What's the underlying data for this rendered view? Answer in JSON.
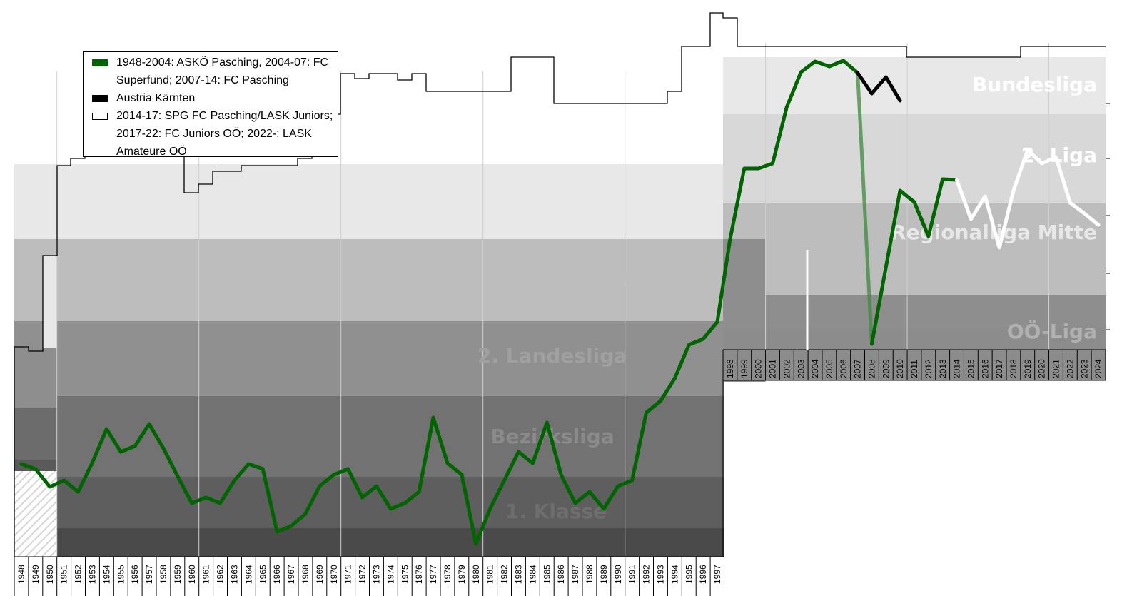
{
  "chart_data": {
    "type": "line",
    "title": "",
    "xlabel": "",
    "ylabel": "",
    "x_range": [
      1948,
      2024
    ],
    "grid": true,
    "legend_placement": "top-left",
    "league_labels": [
      {
        "name": "Bundesliga",
        "year": 2024
      },
      {
        "name": "2. Liga",
        "year": 2024
      },
      {
        "name": "Regionalliga Mitte",
        "year": 2024
      },
      {
        "name": "Landesliga Oberösterreich",
        "year": 1976
      },
      {
        "name": "2. Landesliga",
        "year": 1976
      },
      {
        "name": "Bezirksliga",
        "year": 1976
      },
      {
        "name": "1. Klasse",
        "year": 1976
      },
      {
        "name": "OÖ-Liga",
        "year": 2024
      }
    ],
    "legend": [
      {
        "label": "1948-2004: ASKÖ Pasching, 2004-07: FC Superfund; 2007-14: FC Pasching",
        "color": "#006400"
      },
      {
        "label": "Austria Kärnten",
        "color": "#000000"
      },
      {
        "label": "2014-17: SPG FC Pasching/LASK Juniors; 2017-22: FC Juniors OÖ; 2022-: LASK Amateure OÖ",
        "color": "#ffffff"
      }
    ],
    "years_left": [
      1948,
      1949,
      1950,
      1951,
      1952,
      1953,
      1954,
      1955,
      1956,
      1957,
      1958,
      1959,
      1960,
      1961,
      1962,
      1963,
      1964,
      1965,
      1966,
      1967,
      1968,
      1969,
      1970,
      1971,
      1972,
      1973,
      1974,
      1975,
      1976,
      1977,
      1978,
      1979,
      1980,
      1981,
      1982,
      1983,
      1984,
      1985,
      1986,
      1987,
      1988,
      1989,
      1990,
      1991,
      1992,
      1993,
      1994,
      1995,
      1996,
      1997
    ],
    "years_right": [
      1998,
      1999,
      2000,
      2001,
      2002,
      2003,
      2004,
      2005,
      2006,
      2007,
      2008,
      2009,
      2010,
      2011,
      2012,
      2013,
      2014,
      2015,
      2016,
      2017,
      2018,
      2019,
      2020,
      2021,
      2022,
      2023,
      2024
    ],
    "series": [
      {
        "name": "1948-2004: ASKÖ Pasching, 2004-07: FC Superfund; 2007-14: FC Pasching",
        "color": "#006400",
        "x": [
          1948,
          1949,
          1950,
          1951,
          1952,
          1953,
          1954,
          1955,
          1956,
          1957,
          1958,
          1959,
          1960,
          1961,
          1962,
          1963,
          1964,
          1965,
          1966,
          1967,
          1968,
          1969,
          1970,
          1971,
          1972,
          1973,
          1974,
          1975,
          1976,
          1977,
          1978,
          1979,
          1980,
          1981,
          1982,
          1983,
          1984,
          1985,
          1986,
          1987,
          1988,
          1989,
          1990,
          1991,
          1992,
          1993,
          1994,
          1995,
          1996,
          1997,
          1998,
          1999,
          2000,
          2001,
          2002,
          2003,
          2004,
          2005,
          2006,
          2007,
          2008,
          2009,
          2010,
          2011,
          2012,
          2013,
          2014
        ],
        "y": [
          650,
          657,
          682,
          673,
          689,
          648,
          601,
          633,
          625,
          594,
          628,
          667,
          705,
          697,
          705,
          673,
          650,
          657,
          745,
          737,
          720,
          681,
          665,
          657,
          697,
          681,
          713,
          705,
          689,
          585,
          649,
          665,
          762,
          713,
          673,
          633,
          649,
          592,
          665,
          705,
          689,
          713,
          681,
          673,
          578,
          562,
          530,
          483,
          475,
          451,
          335,
          236,
          236,
          229,
          150,
          101,
          86,
          93,
          85,
          102,
          482,
          374,
          267,
          283,
          331,
          251,
          252
        ]
      },
      {
        "name": "Austria Kärnten",
        "color": "#000000",
        "x": [
          2007,
          2008,
          2009,
          2010
        ],
        "y": [
          102,
          131,
          108,
          141
        ]
      },
      {
        "name": "2014-17: SPG FC Pasching/LASK Juniors; 2017-22: FC Juniors OÖ; 2022-: LASK Amateure OÖ",
        "color": "#ffffff",
        "x": [
          2014,
          2015,
          2016,
          2017,
          2018,
          2019,
          2020,
          2021,
          2022,
          2023,
          2024
        ],
        "y": [
          252,
          307,
          275,
          347,
          267,
          210,
          229,
          220,
          284,
          299,
          315
        ]
      }
    ]
  }
}
